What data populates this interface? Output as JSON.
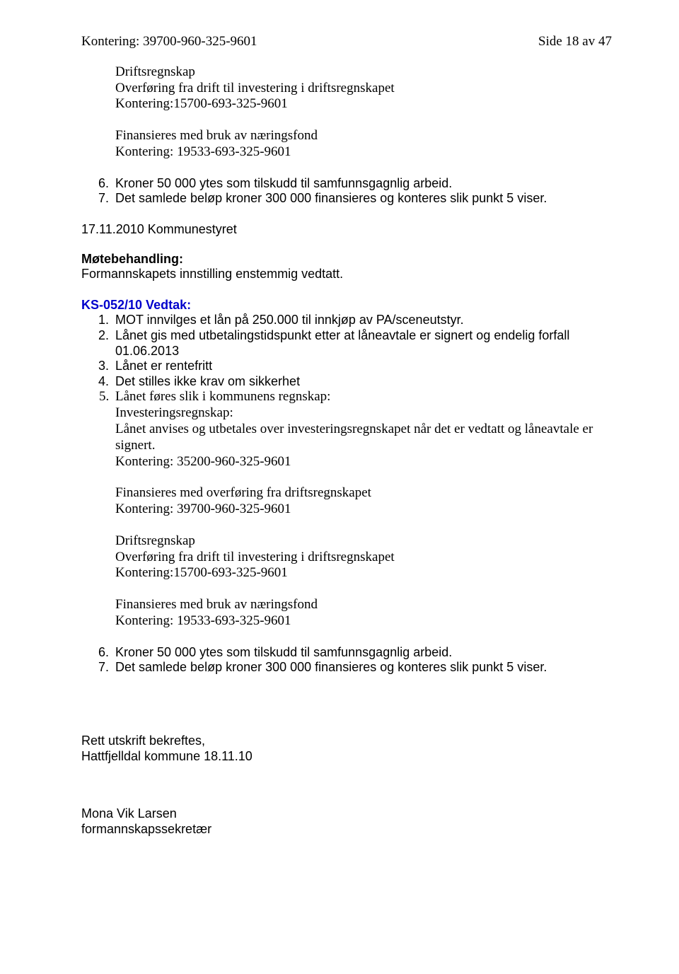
{
  "page_number": "Side 18 av 47",
  "kontering_top": "Kontering: 39700-960-325-9601",
  "block_driftsregnskap1": {
    "l1": "Driftsregnskap",
    "l2": "Overføring fra drift til investering i driftsregnskapet",
    "l3": "Kontering:15700-693-325-9601"
  },
  "block_naeringsfond1": {
    "l1": "Finansieres med bruk av næringsfond",
    "l2": "Kontering: 19533-693-325-9601"
  },
  "list_top": {
    "i6": "Kroner 50 000 ytes som tilskudd til samfunnsgagnlig arbeid.",
    "i7": "Det samlede beløp kroner 300 000 finansieres og konteres slik punkt 5 viser."
  },
  "meeting_date": "17.11.2010 Kommunestyret",
  "motebehandling_label": "Møtebehandling:",
  "motebehandling_text": "Formannskapets innstilling enstemmig vedtatt.",
  "vedtak_label": "KS-052/10 Vedtak:",
  "vedtak_list": {
    "i1": "MOT innvilges et lån på 250.000 til innkjøp av PA/sceneutstyr.",
    "i2": "Lånet gis med utbetalingstidspunkt etter at låneavtale er signert og endelig forfall 01.06.2013",
    "i3": "Lånet er rentefritt",
    "i4": "Det stilles ikke krav om sikkerhet",
    "i5": "Lånet føres slik i kommunens regnskap:"
  },
  "sub5": {
    "l1": "Investeringsregnskap:",
    "l2": "Lånet anvises og utbetales over investeringsregnskapet når det er vedtatt og låneavtale er signert.",
    "l3": "Kontering: 35200-960-325-9601"
  },
  "block_overforing": {
    "l1": "Finansieres med overføring fra driftsregnskapet",
    "l2": "Kontering: 39700-960-325-9601"
  },
  "block_driftsregnskap2": {
    "l1": "Driftsregnskap",
    "l2": "Overføring fra drift til investering i driftsregnskapet",
    "l3": "Kontering:15700-693-325-9601"
  },
  "block_naeringsfond2": {
    "l1": "Finansieres med bruk av næringsfond",
    "l2": "Kontering: 19533-693-325-9601"
  },
  "list_bottom": {
    "i6": "Kroner 50 000 ytes som tilskudd til samfunnsgagnlig arbeid.",
    "i7": "Det samlede beløp kroner 300 000 finansieres og konteres slik punkt 5 viser."
  },
  "footer": {
    "l1": "Rett utskrift bekreftes,",
    "l2": "Hattfjelldal kommune 18.11.10",
    "l3": "Mona Vik Larsen",
    "l4": "formannskapssekretær"
  },
  "colors": {
    "text": "#000000",
    "blue": "#0000cc",
    "background": "#ffffff"
  },
  "fonts": {
    "serif": "Times New Roman",
    "sans": "Arial",
    "base_size_pt": 14
  }
}
